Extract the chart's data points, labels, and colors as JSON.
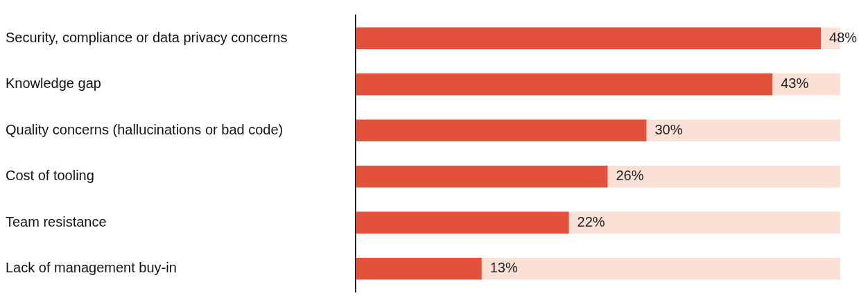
{
  "chart_data": {
    "type": "bar",
    "orientation": "horizontal",
    "categories": [
      "Security, compliance or data privacy concerns",
      "Knowledge gap",
      "Quality concerns (hallucinations or bad code)",
      "Cost of tooling",
      "Team resistance",
      "Lack of management buy-in"
    ],
    "values": [
      48,
      43,
      30,
      26,
      22,
      13
    ],
    "color": "#e2523a",
    "value_labels": [
      "48%",
      "43%",
      "30%",
      "26%",
      "22%",
      "13%"
    ],
    "grid": false,
    "legend": false
  }
}
